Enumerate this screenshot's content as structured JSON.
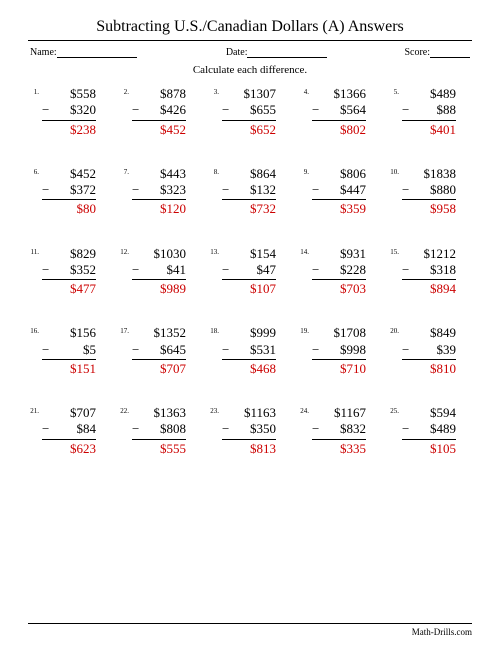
{
  "title": "Subtracting U.S./Canadian Dollars (A) Answers",
  "labels": {
    "name": "Name:",
    "date": "Date:",
    "score": "Score:"
  },
  "instruction": "Calculate each difference.",
  "footer": "Math-Drills.com",
  "answer_color": "#cc0000",
  "problems": [
    {
      "n": "1.",
      "a": "$558",
      "b": "$320",
      "r": "$238"
    },
    {
      "n": "2.",
      "a": "$878",
      "b": "$426",
      "r": "$452"
    },
    {
      "n": "3.",
      "a": "$1307",
      "b": "$655",
      "r": "$652"
    },
    {
      "n": "4.",
      "a": "$1366",
      "b": "$564",
      "r": "$802"
    },
    {
      "n": "5.",
      "a": "$489",
      "b": "$88",
      "r": "$401"
    },
    {
      "n": "6.",
      "a": "$452",
      "b": "$372",
      "r": "$80"
    },
    {
      "n": "7.",
      "a": "$443",
      "b": "$323",
      "r": "$120"
    },
    {
      "n": "8.",
      "a": "$864",
      "b": "$132",
      "r": "$732"
    },
    {
      "n": "9.",
      "a": "$806",
      "b": "$447",
      "r": "$359"
    },
    {
      "n": "10.",
      "a": "$1838",
      "b": "$880",
      "r": "$958"
    },
    {
      "n": "11.",
      "a": "$829",
      "b": "$352",
      "r": "$477"
    },
    {
      "n": "12.",
      "a": "$1030",
      "b": "$41",
      "r": "$989"
    },
    {
      "n": "13.",
      "a": "$154",
      "b": "$47",
      "r": "$107"
    },
    {
      "n": "14.",
      "a": "$931",
      "b": "$228",
      "r": "$703"
    },
    {
      "n": "15.",
      "a": "$1212",
      "b": "$318",
      "r": "$894"
    },
    {
      "n": "16.",
      "a": "$156",
      "b": "$5",
      "r": "$151"
    },
    {
      "n": "17.",
      "a": "$1352",
      "b": "$645",
      "r": "$707"
    },
    {
      "n": "18.",
      "a": "$999",
      "b": "$531",
      "r": "$468"
    },
    {
      "n": "19.",
      "a": "$1708",
      "b": "$998",
      "r": "$710"
    },
    {
      "n": "20.",
      "a": "$849",
      "b": "$39",
      "r": "$810"
    },
    {
      "n": "21.",
      "a": "$707",
      "b": "$84",
      "r": "$623"
    },
    {
      "n": "22.",
      "a": "$1363",
      "b": "$808",
      "r": "$555"
    },
    {
      "n": "23.",
      "a": "$1163",
      "b": "$350",
      "r": "$813"
    },
    {
      "n": "24.",
      "a": "$1167",
      "b": "$832",
      "r": "$335"
    },
    {
      "n": "25.",
      "a": "$594",
      "b": "$489",
      "r": "$105"
    }
  ]
}
